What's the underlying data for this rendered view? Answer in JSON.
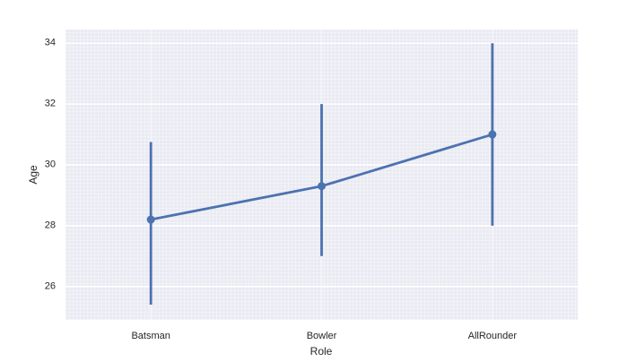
{
  "figure": {
    "background": "#ffffff"
  },
  "chart_data": {
    "type": "line",
    "variant": "pointplot_with_error_bars",
    "title": "",
    "xlabel": "Role",
    "ylabel": "Age",
    "categories": [
      "Batsman",
      "Bowler",
      "AllRounder"
    ],
    "series": [
      {
        "name": "Age",
        "values": [
          28.2,
          29.3,
          31.0
        ],
        "error_low": [
          25.4,
          27.0,
          28.0
        ],
        "error_high": [
          30.75,
          32.0,
          34.0
        ]
      }
    ],
    "yticks": [
      26,
      28,
      30,
      32,
      34
    ],
    "ylim": [
      24.9,
      34.45
    ],
    "xlim_padding": 0.5,
    "grid": true,
    "legend": false,
    "colors": {
      "line": "#4c72b0",
      "marker": "#4c72b0",
      "error_bar": "#4c72b0",
      "plot_background": "#e9eaf2",
      "gridline": "#ffffff",
      "text": "#262626"
    }
  }
}
